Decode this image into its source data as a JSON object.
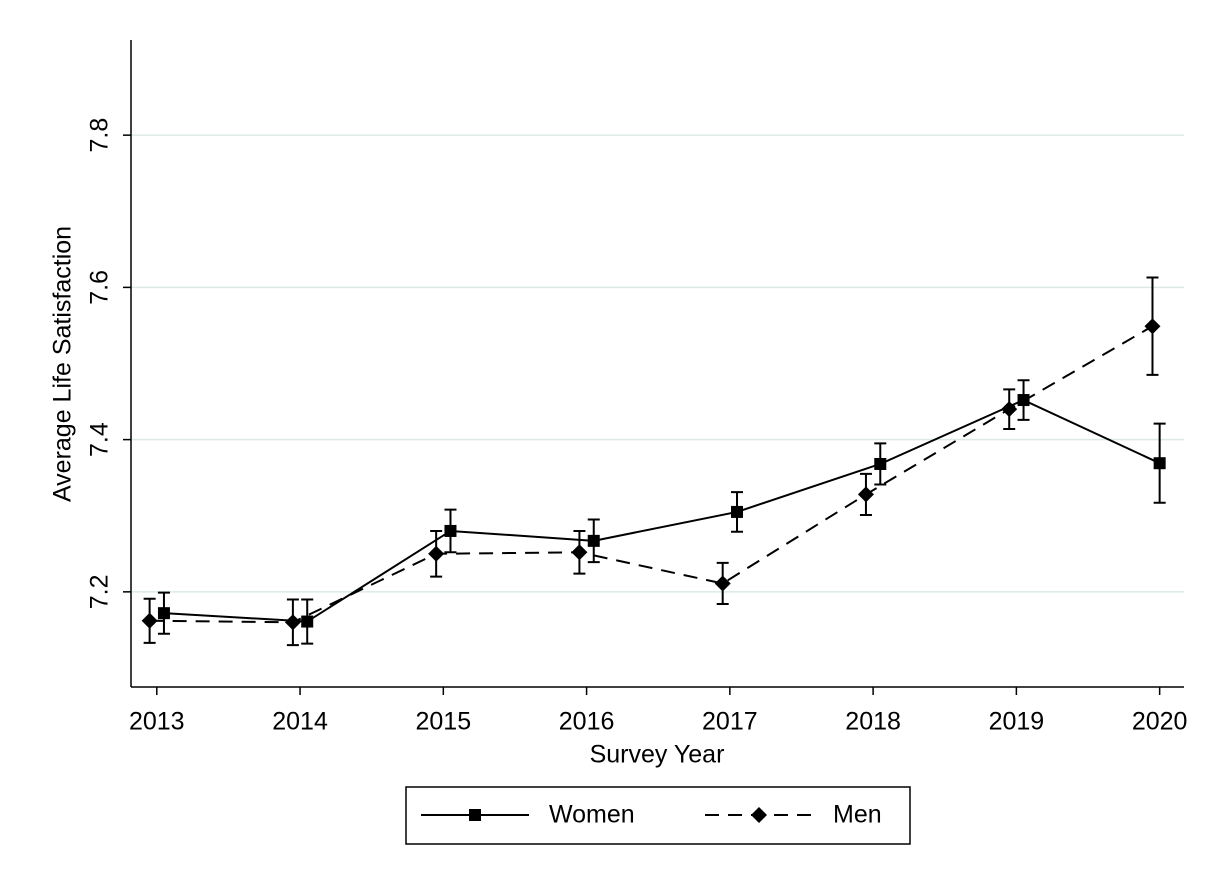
{
  "chart_data": {
    "type": "line",
    "xlabel": "Survey Year",
    "ylabel": "Average Life Satisfaction",
    "xlim": [
      2012.82,
      2020.17
    ],
    "xticks": [
      2013,
      2014,
      2015,
      2016,
      2017,
      2018,
      2019,
      2020
    ],
    "ylim": [
      7.075,
      7.925
    ],
    "yticks": [
      7.2,
      7.4,
      7.6,
      7.8
    ],
    "grid": true,
    "legend": "bottom",
    "series": [
      {
        "name": "Women",
        "color": "#000000",
        "linestyle": "solid",
        "marker": "square",
        "x": [
          2013.05,
          2014.05,
          2015.05,
          2016.05,
          2017.05,
          2018.05,
          2019.05,
          2020.0
        ],
        "values": [
          7.172,
          7.161,
          7.28,
          7.267,
          7.305,
          7.368,
          7.452,
          7.369
        ],
        "errors": [
          0.027,
          0.029,
          0.028,
          0.028,
          0.026,
          0.027,
          0.026,
          0.052
        ]
      },
      {
        "name": "Men",
        "color": "#000000",
        "linestyle": "dashed",
        "marker": "diamond",
        "x": [
          2012.95,
          2013.95,
          2014.95,
          2015.95,
          2016.95,
          2017.95,
          2018.95,
          2019.95
        ],
        "values": [
          7.162,
          7.16,
          7.25,
          7.252,
          7.211,
          7.328,
          7.44,
          7.549
        ],
        "errors": [
          0.029,
          0.03,
          0.03,
          0.028,
          0.027,
          0.027,
          0.026,
          0.064
        ]
      }
    ]
  }
}
